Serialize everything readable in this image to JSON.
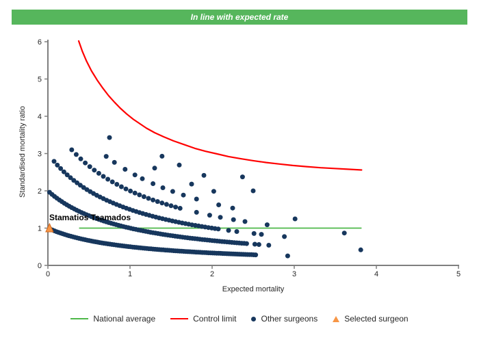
{
  "banner": {
    "text": "In line with expected rate",
    "bg_color": "#56b65c",
    "text_color": "#ffffff"
  },
  "chart_data": {
    "type": "scatter",
    "subtype": "funnel-plot",
    "xlabel": "Expected mortality",
    "ylabel": "Standardised mortality ratio",
    "xlim": [
      0,
      5
    ],
    "ylim": [
      0,
      6
    ],
    "xticks": [
      "0",
      "1",
      "2",
      "3",
      "4",
      "5"
    ],
    "yticks": [
      "0",
      "1",
      "2",
      "3",
      "4",
      "5",
      "6"
    ],
    "grid": false,
    "legend_position": "bottom",
    "axis_color": "#7f7f7f",
    "national_average": {
      "label": "National average",
      "color": "#4db848",
      "y": 1.0,
      "x_start": 0.38,
      "x_end": 3.82
    },
    "control_limit": {
      "label": "Control limit",
      "color": "#ff0000",
      "points": [
        [
          0.375,
          6.02
        ],
        [
          0.42,
          5.74
        ],
        [
          0.47,
          5.48
        ],
        [
          0.53,
          5.22
        ],
        [
          0.6,
          4.97
        ],
        [
          0.67,
          4.75
        ],
        [
          0.74,
          4.55
        ],
        [
          0.81,
          4.38
        ],
        [
          0.88,
          4.22
        ],
        [
          0.96,
          4.06
        ],
        [
          1.04,
          3.92
        ],
        [
          1.12,
          3.8
        ],
        [
          1.2,
          3.68
        ],
        [
          1.3,
          3.56
        ],
        [
          1.41,
          3.45
        ],
        [
          1.53,
          3.34
        ],
        [
          1.66,
          3.24
        ],
        [
          1.79,
          3.14
        ],
        [
          1.92,
          3.06
        ],
        [
          2.06,
          2.99
        ],
        [
          2.2,
          2.92
        ],
        [
          2.35,
          2.86
        ],
        [
          2.5,
          2.81
        ],
        [
          2.66,
          2.76
        ],
        [
          2.82,
          2.72
        ],
        [
          2.98,
          2.68
        ],
        [
          3.15,
          2.65
        ],
        [
          3.32,
          2.62
        ],
        [
          3.49,
          2.6
        ],
        [
          3.65,
          2.58
        ],
        [
          3.82,
          2.56
        ]
      ]
    },
    "other_surgeons": {
      "label": "Other surgeons",
      "color": "#17375d",
      "marker": "circle",
      "marker_radius": 3.5,
      "band_rule": "ratio = deaths / (1 + expected_mortality)",
      "bands": [
        {
          "deaths": 1,
          "x_from": 0.03,
          "x_to": 2.55,
          "x_step": 0.025,
          "extra_x": [
            2.92
          ]
        },
        {
          "deaths": 2,
          "x_from": 0.02,
          "x_to": 2.42,
          "x_step": 0.03,
          "extra_x": [
            2.52,
            2.57,
            2.69,
            3.81
          ]
        },
        {
          "deaths": 3,
          "x_from": 0.075,
          "x_to": 2.1,
          "x_step": 0.04,
          "extra_x": [
            2.2,
            2.3,
            2.51,
            2.6,
            2.88
          ]
        },
        {
          "deaths": 4,
          "x_from": 0.29,
          "x_to": 1.62,
          "x_step": 0.055,
          "extra_x": [
            1.81,
            1.97,
            2.1,
            2.26,
            2.4,
            2.67,
            3.61
          ]
        },
        {
          "deaths": 5,
          "x_from": null,
          "x_to": null,
          "x_step": null,
          "extra_x": [
            0.71,
            0.81,
            0.94,
            1.06,
            1.15,
            1.28,
            1.4,
            1.52,
            1.65,
            1.81,
            2.08,
            2.25,
            3.01
          ]
        },
        {
          "deaths": 6,
          "x_from": null,
          "x_to": null,
          "x_step": null,
          "extra_x": [
            0.75,
            1.3,
            1.75,
            2.02
          ]
        },
        {
          "deaths": 7,
          "x_from": null,
          "x_to": null,
          "x_step": null,
          "extra_x": [
            1.39,
            1.6,
            1.9,
            2.5
          ]
        },
        {
          "deaths": 8,
          "x_from": null,
          "x_to": null,
          "x_step": null,
          "extra_x": [
            2.37
          ]
        }
      ]
    },
    "selected_surgeon": {
      "label": "Selected surgeon",
      "name": "Stamatios Tsamados",
      "color": "#f79646",
      "border_color": "#d2691e",
      "x": 0.02,
      "y": 1.0
    }
  }
}
